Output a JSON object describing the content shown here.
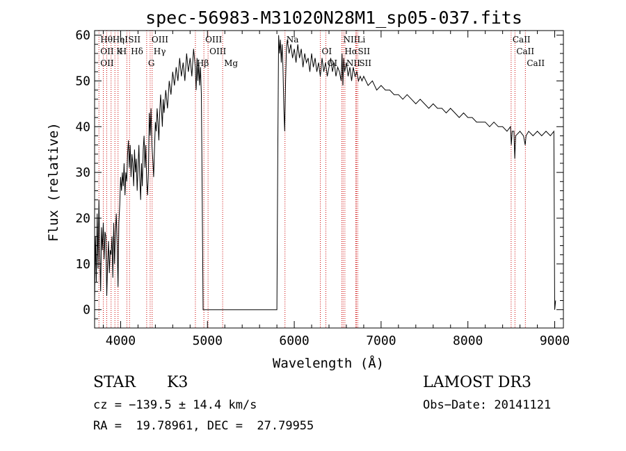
{
  "chart_data": {
    "type": "line",
    "title": "spec-56983-M31020N28M1_sp05-037.fits",
    "xlabel": "Wavelength (Å)",
    "ylabel": "Flux (relative)",
    "xlim": [
      3700,
      9100
    ],
    "ylim": [
      -4,
      61
    ],
    "xticks": [
      4000,
      5000,
      6000,
      7000,
      8000,
      9000
    ],
    "yticks": [
      0,
      10,
      20,
      30,
      40,
      50,
      60
    ],
    "series": [
      {
        "name": "spectrum",
        "points": [
          [
            3700,
            2
          ],
          [
            3710,
            16
          ],
          [
            3720,
            6
          ],
          [
            3730,
            21
          ],
          [
            3740,
            9
          ],
          [
            3750,
            24
          ],
          [
            3760,
            12
          ],
          [
            3770,
            4
          ],
          [
            3780,
            18
          ],
          [
            3790,
            13
          ],
          [
            3800,
            19
          ],
          [
            3810,
            11
          ],
          [
            3820,
            17
          ],
          [
            3830,
            16
          ],
          [
            3840,
            3
          ],
          [
            3850,
            10
          ],
          [
            3860,
            15
          ],
          [
            3870,
            8
          ],
          [
            3880,
            13
          ],
          [
            3890,
            12
          ],
          [
            3900,
            16
          ],
          [
            3910,
            7
          ],
          [
            3920,
            19
          ],
          [
            3930,
            10
          ],
          [
            3940,
            17
          ],
          [
            3950,
            21
          ],
          [
            3960,
            14
          ],
          [
            3970,
            5
          ],
          [
            3980,
            19
          ],
          [
            3990,
            23
          ],
          [
            4000,
            29
          ],
          [
            4010,
            26
          ],
          [
            4020,
            30
          ],
          [
            4030,
            27
          ],
          [
            4040,
            32
          ],
          [
            4050,
            25
          ],
          [
            4060,
            30
          ],
          [
            4070,
            28
          ],
          [
            4080,
            34
          ],
          [
            4090,
            37
          ],
          [
            4100,
            31
          ],
          [
            4110,
            36
          ],
          [
            4120,
            29
          ],
          [
            4130,
            34
          ],
          [
            4140,
            32
          ],
          [
            4150,
            27
          ],
          [
            4160,
            35
          ],
          [
            4170,
            30
          ],
          [
            4180,
            33
          ],
          [
            4190,
            26
          ],
          [
            4200,
            31
          ],
          [
            4210,
            36
          ],
          [
            4220,
            29
          ],
          [
            4230,
            24
          ],
          [
            4240,
            32
          ],
          [
            4250,
            27
          ],
          [
            4260,
            35
          ],
          [
            4270,
            38
          ],
          [
            4280,
            31
          ],
          [
            4290,
            36
          ],
          [
            4300,
            28
          ],
          [
            4310,
            25
          ],
          [
            4320,
            30
          ],
          [
            4330,
            43
          ],
          [
            4340,
            38
          ],
          [
            4350,
            44
          ],
          [
            4360,
            36
          ],
          [
            4370,
            33
          ],
          [
            4380,
            29
          ],
          [
            4390,
            35
          ],
          [
            4400,
            41
          ],
          [
            4410,
            39
          ],
          [
            4420,
            44
          ],
          [
            4430,
            41
          ],
          [
            4440,
            37
          ],
          [
            4450,
            43
          ],
          [
            4460,
            47
          ],
          [
            4470,
            44
          ],
          [
            4480,
            40
          ],
          [
            4490,
            46
          ],
          [
            4500,
            43
          ],
          [
            4520,
            48
          ],
          [
            4540,
            44
          ],
          [
            4560,
            50
          ],
          [
            4580,
            47
          ],
          [
            4600,
            52
          ],
          [
            4620,
            49
          ],
          [
            4640,
            53
          ],
          [
            4660,
            50
          ],
          [
            4680,
            55
          ],
          [
            4700,
            51
          ],
          [
            4720,
            54
          ],
          [
            4740,
            50
          ],
          [
            4760,
            56
          ],
          [
            4780,
            52
          ],
          [
            4800,
            55
          ],
          [
            4820,
            51
          ],
          [
            4840,
            57
          ],
          [
            4860,
            53
          ],
          [
            4870,
            48
          ],
          [
            4880,
            55
          ],
          [
            4890,
            50
          ],
          [
            4900,
            54
          ],
          [
            4910,
            49
          ],
          [
            4920,
            53
          ],
          [
            4930,
            47
          ],
          [
            4940,
            23
          ],
          [
            4950,
            0
          ],
          [
            5000,
            0
          ],
          [
            5200,
            0
          ],
          [
            5400,
            0
          ],
          [
            5600,
            0
          ],
          [
            5800,
            0
          ],
          [
            5810,
            35
          ],
          [
            5820,
            60
          ],
          [
            5830,
            56
          ],
          [
            5840,
            59
          ],
          [
            5850,
            54
          ],
          [
            5860,
            58
          ],
          [
            5870,
            53
          ],
          [
            5880,
            44
          ],
          [
            5890,
            39
          ],
          [
            5900,
            50
          ],
          [
            5910,
            57
          ],
          [
            5920,
            59
          ],
          [
            5940,
            56
          ],
          [
            5960,
            58
          ],
          [
            5980,
            55
          ],
          [
            6000,
            57
          ],
          [
            6020,
            54
          ],
          [
            6040,
            58
          ],
          [
            6060,
            55
          ],
          [
            6080,
            57
          ],
          [
            6100,
            53
          ],
          [
            6120,
            56
          ],
          [
            6140,
            54
          ],
          [
            6160,
            55
          ],
          [
            6180,
            52
          ],
          [
            6200,
            56
          ],
          [
            6220,
            53
          ],
          [
            6240,
            55
          ],
          [
            6260,
            52
          ],
          [
            6280,
            54
          ],
          [
            6300,
            51
          ],
          [
            6320,
            55
          ],
          [
            6340,
            52
          ],
          [
            6360,
            54
          ],
          [
            6380,
            51
          ],
          [
            6400,
            53
          ],
          [
            6420,
            55
          ],
          [
            6440,
            52
          ],
          [
            6460,
            54
          ],
          [
            6480,
            51
          ],
          [
            6500,
            53
          ],
          [
            6520,
            52
          ],
          [
            6540,
            50
          ],
          [
            6550,
            56
          ],
          [
            6560,
            49
          ],
          [
            6570,
            55
          ],
          [
            6580,
            52
          ],
          [
            6600,
            54
          ],
          [
            6620,
            51
          ],
          [
            6640,
            53
          ],
          [
            6660,
            50
          ],
          [
            6680,
            53
          ],
          [
            6700,
            51
          ],
          [
            6720,
            52
          ],
          [
            6740,
            50
          ],
          [
            6760,
            51
          ],
          [
            6780,
            50
          ],
          [
            6800,
            51
          ],
          [
            6850,
            49
          ],
          [
            6900,
            50
          ],
          [
            6950,
            48
          ],
          [
            7000,
            49
          ],
          [
            7050,
            48
          ],
          [
            7100,
            48
          ],
          [
            7150,
            47
          ],
          [
            7200,
            47
          ],
          [
            7250,
            46
          ],
          [
            7300,
            47
          ],
          [
            7350,
            46
          ],
          [
            7400,
            45
          ],
          [
            7450,
            46
          ],
          [
            7500,
            45
          ],
          [
            7550,
            44
          ],
          [
            7600,
            45
          ],
          [
            7650,
            44
          ],
          [
            7700,
            44
          ],
          [
            7750,
            43
          ],
          [
            7800,
            44
          ],
          [
            7850,
            43
          ],
          [
            7900,
            42
          ],
          [
            7950,
            43
          ],
          [
            8000,
            42
          ],
          [
            8050,
            42
          ],
          [
            8100,
            41
          ],
          [
            8150,
            41
          ],
          [
            8200,
            41
          ],
          [
            8250,
            40
          ],
          [
            8300,
            41
          ],
          [
            8350,
            40
          ],
          [
            8400,
            40
          ],
          [
            8450,
            39
          ],
          [
            8490,
            40
          ],
          [
            8500,
            36
          ],
          [
            8510,
            39
          ],
          [
            8530,
            39
          ],
          [
            8540,
            33
          ],
          [
            8550,
            38
          ],
          [
            8600,
            39
          ],
          [
            8640,
            38
          ],
          [
            8660,
            36
          ],
          [
            8670,
            38
          ],
          [
            8700,
            39
          ],
          [
            8750,
            38
          ],
          [
            8800,
            39
          ],
          [
            8850,
            38
          ],
          [
            8900,
            39
          ],
          [
            8950,
            38
          ],
          [
            8990,
            39
          ],
          [
            9000,
            0
          ],
          [
            9010,
            2
          ]
        ]
      }
    ],
    "reference_lines": [
      {
        "x": 3750,
        "labels": [
          "Hθ",
          "OII",
          "OII"
        ]
      },
      {
        "x": 3800,
        "labels": []
      },
      {
        "x": 3840,
        "labels": []
      },
      {
        "x": 3890,
        "labels": [
          "HeI"
        ]
      },
      {
        "x": 3934,
        "labels": [
          "K"
        ]
      },
      {
        "x": 3970,
        "labels": [
          "η",
          "H"
        ]
      },
      {
        "x": 4072,
        "labels": [
          "SII"
        ]
      },
      {
        "x": 4102,
        "labels": [
          "Hδ"
        ]
      },
      {
        "x": 4300,
        "labels": [
          "G"
        ]
      },
      {
        "x": 4340,
        "labels": [
          "OIII"
        ]
      },
      {
        "x": 4363,
        "labels": [
          "Hγ"
        ]
      },
      {
        "x": 4861,
        "labels": [
          "Hβ"
        ]
      },
      {
        "x": 4959,
        "labels": [
          "OIII"
        ]
      },
      {
        "x": 5007,
        "labels": [
          "OIII"
        ]
      },
      {
        "x": 5175,
        "labels": [
          "Mg"
        ]
      },
      {
        "x": 5893,
        "labels": [
          "Na"
        ]
      },
      {
        "x": 6300,
        "labels": [
          "OI"
        ]
      },
      {
        "x": 6364,
        "labels": [
          "OI"
        ]
      },
      {
        "x": 6548,
        "labels": [
          "NII"
        ]
      },
      {
        "x": 6563,
        "labels": [
          "Hα"
        ]
      },
      {
        "x": 6583,
        "labels": [
          "NII"
        ]
      },
      {
        "x": 6708,
        "labels": [
          "Li"
        ]
      },
      {
        "x": 6716,
        "labels": [
          "SII"
        ]
      },
      {
        "x": 6731,
        "labels": [
          "SII"
        ]
      },
      {
        "x": 8498,
        "labels": [
          "CaII"
        ]
      },
      {
        "x": 8542,
        "labels": [
          "CaII"
        ]
      },
      {
        "x": 8662,
        "labels": [
          "CaII"
        ]
      }
    ]
  },
  "info": {
    "class_label": "STAR",
    "subclass": "K3",
    "survey": "LAMOST DR3",
    "cz": "cz = −139.5 ± 14.4 km/s",
    "obs_date": "Obs−Date: 20141121",
    "coords": "RA =  19.78961, DEC =  27.79955"
  },
  "colors": {
    "spectrum": "#000000",
    "reference_line": "#cc0000",
    "axes": "#000000"
  }
}
